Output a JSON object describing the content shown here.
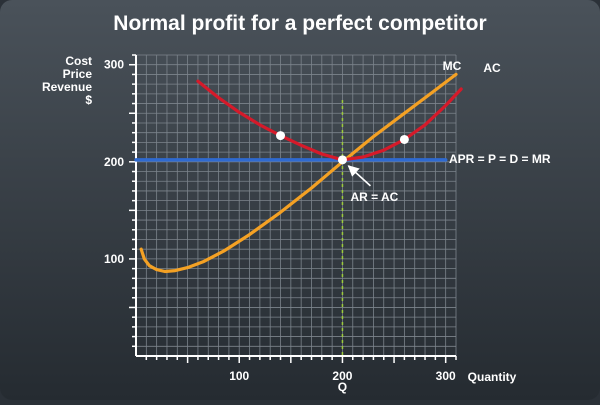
{
  "chart_data": {
    "type": "line",
    "title": "Normal profit for a perfect competitor",
    "ylabel_lines": [
      "Cost",
      "Price",
      "Revenue",
      "$"
    ],
    "xlabel": "Quantity",
    "x_marker_label": "Q",
    "xlim": [
      0,
      310
    ],
    "ylim": [
      0,
      310
    ],
    "x_ticks": [
      100,
      200,
      300
    ],
    "y_ticks": [
      100,
      200,
      300
    ],
    "grid": true,
    "grid_step": 10,
    "series": [
      {
        "name": "AC",
        "color": "#d51a2a",
        "x": [
          60,
          80,
          100,
          120,
          140,
          160,
          180,
          200,
          220,
          240,
          260,
          280,
          300,
          315
        ],
        "y": [
          283,
          266,
          251,
          238,
          227,
          217,
          208,
          202,
          205,
          212,
          223,
          238,
          258,
          275
        ]
      },
      {
        "name": "MC",
        "color": "#f4a124",
        "x": [
          5,
          8,
          13,
          20,
          28,
          38,
          50,
          65,
          85,
          110,
          140,
          170,
          200,
          230,
          260,
          290,
          310
        ],
        "y": [
          110,
          100,
          93,
          89,
          87,
          88,
          91,
          97,
          108,
          125,
          148,
          173,
          200,
          226,
          250,
          274,
          290
        ]
      },
      {
        "name": "APR = P = D = MR",
        "color": "#2f6ad0",
        "x": [
          0,
          300
        ],
        "y": [
          202,
          202
        ]
      }
    ],
    "points": [
      {
        "x": 140,
        "y": 227
      },
      {
        "x": 200,
        "y": 202
      },
      {
        "x": 260,
        "y": 223
      }
    ],
    "equilibrium_x": 200,
    "annotation": {
      "text": "AR = AC",
      "x": 200,
      "y": 202
    },
    "colors": {
      "background_top": "#4a525a",
      "background_bottom": "#252b31",
      "grid": "#7c848c",
      "axis": "#ffffff",
      "marker_line": "#9ccb3b"
    }
  }
}
